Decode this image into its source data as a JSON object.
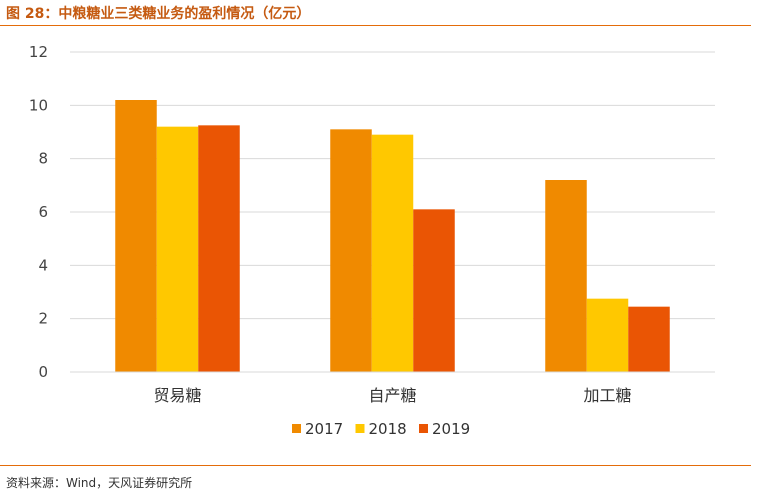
{
  "header": {
    "title": "图 28：中粮糖业三类糖业务的盈利情况（亿元）"
  },
  "footer": {
    "source": "资料来源：Wind，天风证券研究所"
  },
  "colors": {
    "accent": "#e46c0a",
    "grid": "#d9d9d9"
  },
  "chart_data": {
    "type": "bar",
    "title": "图 28：中粮糖业三类糖业务的盈利情况（亿元）",
    "xlabel": "",
    "ylabel": "",
    "categories": [
      "贸易糖",
      "自产糖",
      "加工糖"
    ],
    "series": [
      {
        "name": "2017",
        "color": "#f08a00",
        "values": [
          10.2,
          9.1,
          7.2
        ]
      },
      {
        "name": "2018",
        "color": "#ffc800",
        "values": [
          9.2,
          8.9,
          2.75
        ]
      },
      {
        "name": "2019",
        "color": "#ea5504",
        "values": [
          9.25,
          6.1,
          2.45
        ]
      }
    ],
    "ylim": [
      0,
      12
    ],
    "yticks": [
      0,
      2,
      4,
      6,
      8,
      10,
      12
    ],
    "grid": true,
    "legend_position": "bottom-center"
  }
}
